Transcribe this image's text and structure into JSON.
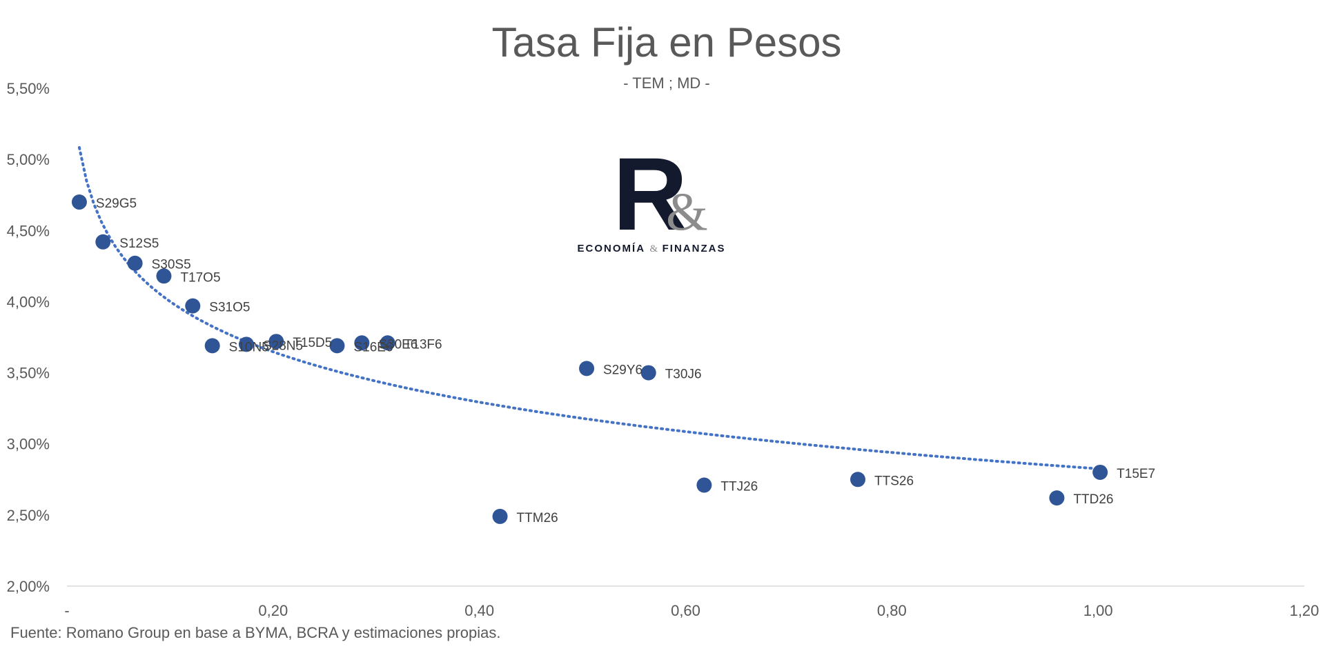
{
  "chart_data": {
    "type": "scatter",
    "title": "Tasa Fija en Pesos",
    "subtitle": "- TEM ; MD -",
    "xlim": [
      0,
      1.2
    ],
    "ylim": [
      0.02,
      0.055
    ],
    "x_ticks": [
      {
        "value": 0,
        "label": "-"
      },
      {
        "value": 0.2,
        "label": "0,20"
      },
      {
        "value": 0.4,
        "label": "0,40"
      },
      {
        "value": 0.6,
        "label": "0,60"
      },
      {
        "value": 0.8,
        "label": "0,80"
      },
      {
        "value": 1.0,
        "label": "1,00"
      },
      {
        "value": 1.2,
        "label": "1,20"
      }
    ],
    "y_ticks": [
      {
        "value": 0.02,
        "label": "2,00%"
      },
      {
        "value": 0.025,
        "label": "2,50%"
      },
      {
        "value": 0.03,
        "label": "3,00%"
      },
      {
        "value": 0.035,
        "label": "3,50%"
      },
      {
        "value": 0.04,
        "label": "4,00%"
      },
      {
        "value": 0.045,
        "label": "4,50%"
      },
      {
        "value": 0.05,
        "label": "5,00%"
      },
      {
        "value": 0.055,
        "label": "5,50%"
      }
    ],
    "grid": false,
    "marker_color": "#2f5597",
    "trend_color": "#4472c4",
    "points": [
      {
        "label": "S29G5",
        "x": 0.012,
        "y": 0.047
      },
      {
        "label": "S12S5",
        "x": 0.035,
        "y": 0.0442
      },
      {
        "label": "S30S5",
        "x": 0.066,
        "y": 0.0427
      },
      {
        "label": "T17O5",
        "x": 0.094,
        "y": 0.0418
      },
      {
        "label": "S31O5",
        "x": 0.122,
        "y": 0.0397
      },
      {
        "label": "S10N5",
        "x": 0.141,
        "y": 0.0369
      },
      {
        "label": "S28N5",
        "x": 0.174,
        "y": 0.037
      },
      {
        "label": "T15D5",
        "x": 0.203,
        "y": 0.0372
      },
      {
        "label": "S16E6",
        "x": 0.262,
        "y": 0.0369
      },
      {
        "label": "S30E6",
        "x": 0.286,
        "y": 0.0371
      },
      {
        "label": "T13F6",
        "x": 0.311,
        "y": 0.0371
      },
      {
        "label": "TTM26",
        "x": 0.42,
        "y": 0.0249
      },
      {
        "label": "S29Y6",
        "x": 0.504,
        "y": 0.0353
      },
      {
        "label": "T30J6",
        "x": 0.564,
        "y": 0.035
      },
      {
        "label": "TTJ26",
        "x": 0.618,
        "y": 0.0271
      },
      {
        "label": "TTS26",
        "x": 0.767,
        "y": 0.0275
      },
      {
        "label": "TTD26",
        "x": 0.96,
        "y": 0.0262
      },
      {
        "label": "T15E7",
        "x": 1.002,
        "y": 0.028
      }
    ],
    "trendline": {
      "type": "log",
      "a": 0.028255,
      "b": -0.005105,
      "x_from": 0.012,
      "x_to": 1.0
    }
  },
  "logo": {
    "mark": "R",
    "ampersand": "&",
    "text_left": "ECONOMÍA",
    "text_amp": "&",
    "text_right": "FINANZAS"
  },
  "source": "Fuente: Romano Group en base a BYMA, BCRA y estimaciones propias."
}
